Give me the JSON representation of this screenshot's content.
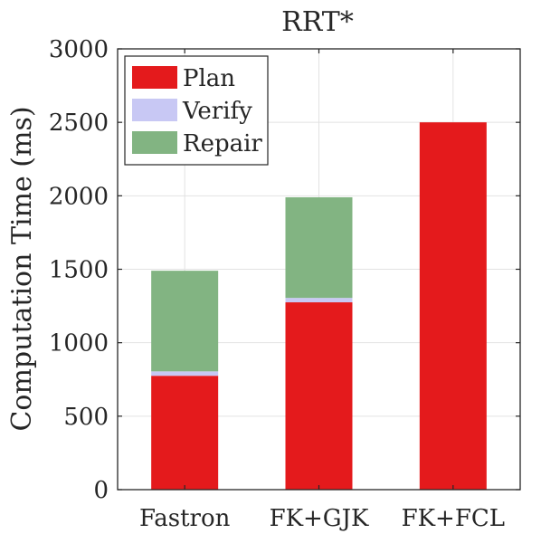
{
  "chart_data": {
    "type": "bar",
    "stacked": true,
    "title": "RRT*",
    "xlabel": "",
    "ylabel": "Computation Time (ms)",
    "categories": [
      "Fastron",
      "FK+GJK",
      "FK+FCL"
    ],
    "ylim": [
      0,
      3000
    ],
    "yticks": [
      0,
      500,
      1000,
      1500,
      2000,
      2500,
      3000
    ],
    "grid": true,
    "legend_position": "top-left",
    "series": [
      {
        "name": "Plan",
        "color": "#e41a1c",
        "values": [
          775,
          1275,
          2500
        ]
      },
      {
        "name": "Verify",
        "color": "#c8c8f4",
        "values": [
          30,
          30,
          0
        ]
      },
      {
        "name": "Repair",
        "color": "#82b482",
        "values": [
          685,
          685,
          0
        ]
      }
    ]
  }
}
